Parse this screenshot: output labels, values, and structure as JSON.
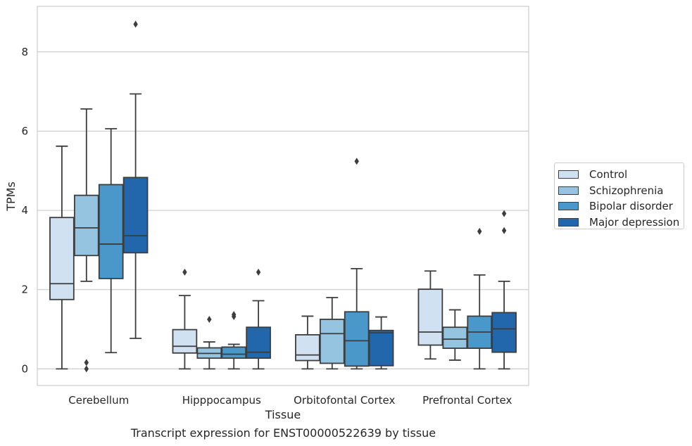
{
  "chart_data": {
    "type": "box",
    "caption": "Transcript expression for ENST00000522639 by tissue",
    "xlabel": "Tissue",
    "ylabel": "TPMs",
    "ylim": [
      -0.42,
      9.15
    ],
    "yticks": [
      0,
      2,
      4,
      6,
      8
    ],
    "grid": "horizontal",
    "legend_placement": "right",
    "categories": [
      "Cerebellum",
      "Hipppocampus",
      "Orbitofontal Cortex",
      "Prefrontal Cortex"
    ],
    "series": [
      {
        "name": "Control",
        "color": "#d0e1f2",
        "boxes": [
          {
            "min": 0.0,
            "q1": 1.75,
            "median": 2.15,
            "q3": 3.82,
            "max": 5.62,
            "outliers": []
          },
          {
            "min": 0.0,
            "q1": 0.4,
            "median": 0.57,
            "q3": 0.99,
            "max": 1.85,
            "outliers": [
              2.44
            ]
          },
          {
            "min": 0.0,
            "q1": 0.21,
            "median": 0.35,
            "q3": 0.86,
            "max": 1.33,
            "outliers": []
          },
          {
            "min": 0.25,
            "q1": 0.6,
            "median": 0.93,
            "q3": 2.01,
            "max": 2.47,
            "outliers": []
          }
        ]
      },
      {
        "name": "Schizophrenia",
        "color": "#94c4df",
        "boxes": [
          {
            "min": 2.21,
            "q1": 2.86,
            "median": 3.56,
            "q3": 4.38,
            "max": 6.56,
            "outliers": [
              0.16,
              0.0
            ]
          },
          {
            "min": 0.0,
            "q1": 0.27,
            "median": 0.39,
            "q3": 0.53,
            "max": 0.68,
            "outliers": [
              1.25
            ]
          },
          {
            "min": 0.0,
            "q1": 0.14,
            "median": 0.89,
            "q3": 1.25,
            "max": 1.8,
            "outliers": []
          },
          {
            "min": 0.22,
            "q1": 0.52,
            "median": 0.75,
            "q3": 1.05,
            "max": 1.49,
            "outliers": []
          }
        ]
      },
      {
        "name": "Bipolar disorder",
        "color": "#4a98c9",
        "boxes": [
          {
            "min": 0.41,
            "q1": 2.28,
            "median": 3.15,
            "q3": 4.65,
            "max": 6.06,
            "outliers": []
          },
          {
            "min": 0.0,
            "q1": 0.27,
            "median": 0.37,
            "q3": 0.55,
            "max": 0.62,
            "outliers": [
              1.37,
              1.32
            ]
          },
          {
            "min": 0.0,
            "q1": 0.07,
            "median": 0.71,
            "q3": 1.44,
            "max": 2.53,
            "outliers": [
              5.24
            ]
          },
          {
            "min": 0.0,
            "q1": 0.52,
            "median": 0.93,
            "q3": 1.33,
            "max": 2.37,
            "outliers": [
              3.47
            ]
          }
        ]
      },
      {
        "name": "Major depression",
        "color": "#2266ac",
        "boxes": [
          {
            "min": 0.77,
            "q1": 2.93,
            "median": 3.36,
            "q3": 4.83,
            "max": 6.94,
            "outliers": [
              8.7
            ]
          },
          {
            "min": 0.0,
            "q1": 0.27,
            "median": 0.42,
            "q3": 1.05,
            "max": 1.72,
            "outliers": [
              2.44
            ]
          },
          {
            "min": 0.0,
            "q1": 0.08,
            "median": 0.91,
            "q3": 0.97,
            "max": 1.31,
            "outliers": []
          },
          {
            "min": 0.0,
            "q1": 0.42,
            "median": 1.01,
            "q3": 1.42,
            "max": 2.21,
            "outliers": [
              3.92,
              3.49
            ]
          }
        ]
      }
    ]
  }
}
